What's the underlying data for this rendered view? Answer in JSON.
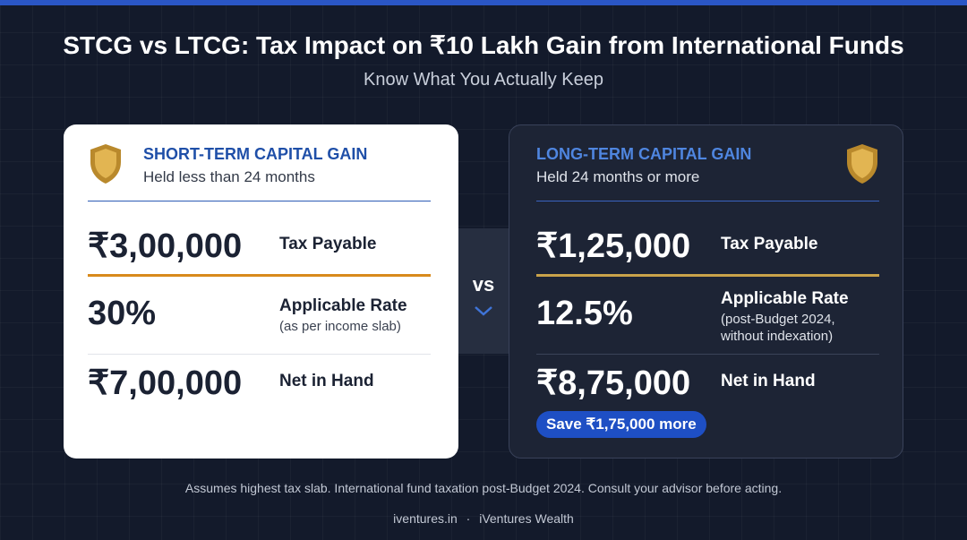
{
  "header": {
    "title": "STCG vs LTCG: Tax Impact on ₹10 Lakh Gain from International Funds",
    "subtitle": "Know What You Actually Keep"
  },
  "cards": [
    {
      "heading": "SHORT-TERM CAPITAL GAIN",
      "subheading": "Held less than 24 months",
      "rows": [
        {
          "amount": "₹3,00,000",
          "label": "Tax Payable"
        },
        {
          "amount": "30%",
          "label": "Applicable Rate",
          "note": "(as per income slab)"
        },
        {
          "amount": "₹7,00,000",
          "label": "Net in Hand"
        }
      ]
    },
    {
      "heading": "LONG-TERM CAPITAL GAIN",
      "subheading": "Held 24 months or more",
      "rows": [
        {
          "amount": "₹1,25,000",
          "label": "Tax Payable"
        },
        {
          "amount": "12.5%",
          "label": "Applicable Rate",
          "note": "(post-Budget 2024, without indexation)"
        },
        {
          "amount": "₹8,75,000",
          "label": "Net in Hand"
        }
      ],
      "badge": "Save ₹1,75,000 more"
    }
  ],
  "versus": "vs",
  "footer": {
    "note": "Assumes highest tax slab. International fund taxation post-Budget 2024. Consult your advisor before acting.",
    "site": "iventures.in",
    "separator": "·",
    "brand": "iVentures Wealth"
  }
}
